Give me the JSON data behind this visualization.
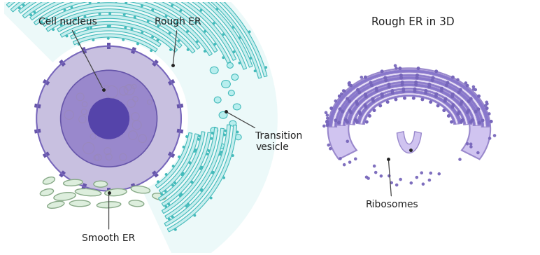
{
  "bg_color": "#ffffff",
  "labels": {
    "cell_nucleus": "Cell nucleus",
    "rough_er": "Rough ER",
    "smooth_er": "Smooth ER",
    "transition_vesicle": "Transition\nvesicle",
    "rough_er_3d": "Rough ER in 3D",
    "ribosomes": "Ribosomes"
  },
  "colors": {
    "cell_body": "#c8c0e0",
    "cell_body_edge": "#7766bb",
    "nuclear_pore": "#6655aa",
    "nucleus_fill": "#9988cc",
    "nucleus_edge": "#6655aa",
    "nucleolus": "#5544aa",
    "organelle": "#b8b0d8",
    "rough_er_line": "#44bbbb",
    "rough_er_fill": "#c8eeee",
    "smooth_er_fill": "#ddeedd",
    "smooth_er_edge": "#88aa88",
    "vesicle_fill": "#b8eeee",
    "vesicle_edge": "#44bbbb",
    "er3d_outer": "#d0c4f0",
    "er3d_membrane": "#8877cc",
    "er3d_lumen": "#e8e0f8",
    "er3d_ribosome": "#7766bb",
    "er3d_edge": "#9988cc",
    "text_color": "#222222",
    "arrow_color": "#444444"
  },
  "figsize": [
    7.72,
    3.64
  ],
  "dpi": 100
}
